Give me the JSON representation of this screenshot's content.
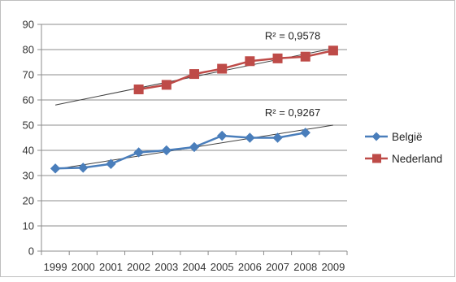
{
  "chart_data": {
    "type": "line",
    "x": [
      "1999",
      "2000",
      "2001",
      "2002",
      "2003",
      "2004",
      "2005",
      "2006",
      "2007",
      "2008",
      "2009"
    ],
    "ylim": [
      0,
      90
    ],
    "yticks": [
      0,
      10,
      20,
      30,
      40,
      50,
      60,
      70,
      80,
      90
    ],
    "grid": true,
    "legend_position": "right",
    "series": [
      {
        "name": "België",
        "color": "#4A7EBB",
        "marker": "diamond",
        "values": [
          32.8,
          33.1,
          34.6,
          39.2,
          40.0,
          41.3,
          45.8,
          45.0,
          45.0,
          47.0,
          null
        ],
        "trendline": {
          "from": [
            "1999",
            32.5
          ],
          "to": [
            "2009",
            50.0
          ],
          "label": "R² = 0,9267"
        }
      },
      {
        "name": "Nederland",
        "color": "#BE4B48",
        "marker": "square",
        "values": [
          null,
          null,
          null,
          64.2,
          66.0,
          70.3,
          72.4,
          75.4,
          76.5,
          77.2,
          79.6
        ],
        "trendline": {
          "from": [
            "1999",
            58.0
          ],
          "to": [
            "2009",
            80.5
          ],
          "label": "R² = 0,9578"
        }
      }
    ]
  }
}
